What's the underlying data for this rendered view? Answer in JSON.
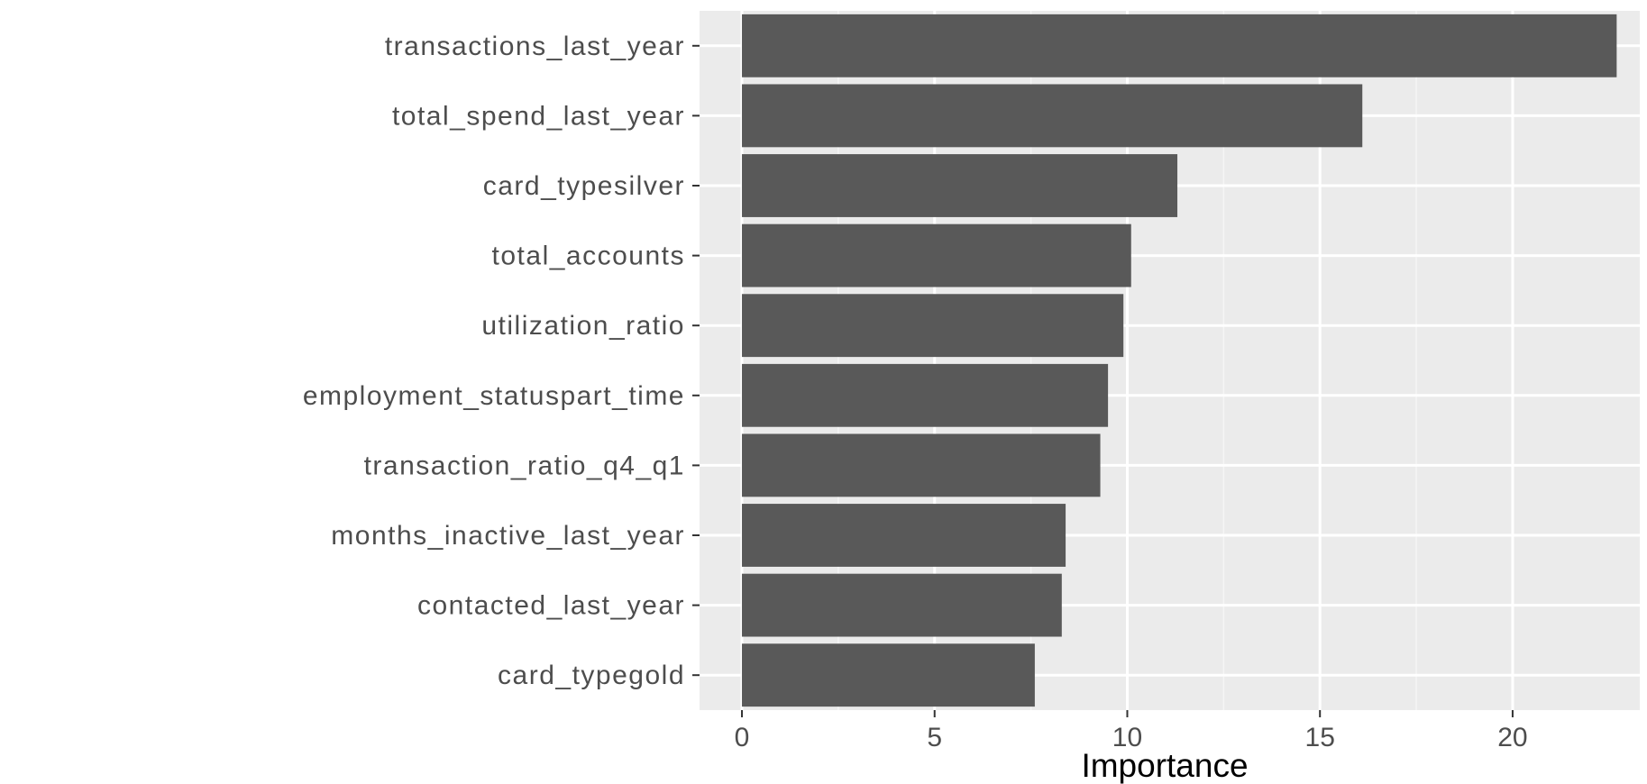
{
  "chart_data": {
    "type": "bar",
    "orientation": "horizontal",
    "title": "",
    "xlabel": "Importance",
    "ylabel": "",
    "categories": [
      "transactions_last_year",
      "total_spend_last_year",
      "card_typesilver",
      "total_accounts",
      "utilization_ratio",
      "employment_statuspart_time",
      "transaction_ratio_q4_q1",
      "months_inactive_last_year",
      "contacted_last_year",
      "card_typegold"
    ],
    "values": [
      22.7,
      16.1,
      11.3,
      10.1,
      9.9,
      9.5,
      9.3,
      8.4,
      8.3,
      7.6
    ],
    "xlim": [
      -1.1,
      23.3
    ],
    "x_ticks": [
      0,
      5,
      10,
      15,
      20
    ],
    "x_tick_labels": [
      "0",
      "5",
      "10",
      "15",
      "20"
    ],
    "grid": true,
    "legend": "none",
    "colors": {
      "bar": "#595959",
      "panel_background": "#ebebeb",
      "grid_major": "#ffffff",
      "grid_minor": "#f5f5f5",
      "tick_label": "#4d4d4d",
      "axis_title": "#000000"
    }
  }
}
